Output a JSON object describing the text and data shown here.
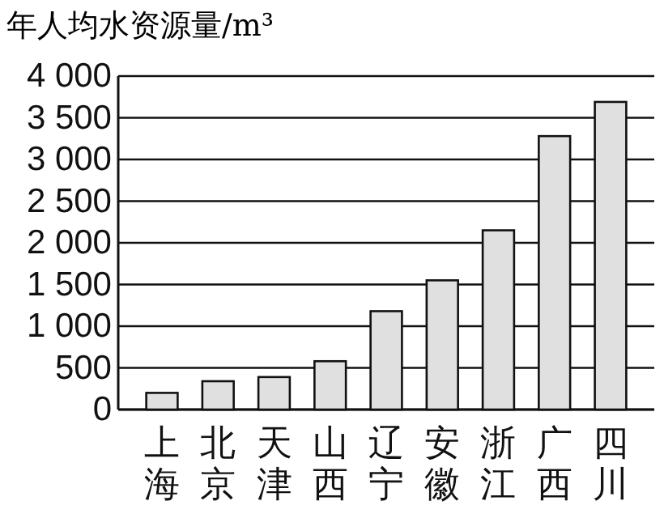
{
  "chart_data": {
    "type": "bar",
    "ylabel": "年人均水资源量/m³",
    "categories": [
      "上海",
      "北京",
      "天津",
      "山西",
      "辽宁",
      "安徽",
      "浙江",
      "广西",
      "四川"
    ],
    "values": [
      200,
      340,
      390,
      580,
      1180,
      1550,
      2150,
      3280,
      3690
    ],
    "color": "#e0e0e0",
    "ylim": [
      0,
      4000
    ],
    "yticks": [
      {
        "value": 0,
        "label": "0"
      },
      {
        "value": 500,
        "label": "500"
      },
      {
        "value": 1000,
        "label": "1 000"
      },
      {
        "value": 1500,
        "label": "1 500"
      },
      {
        "value": 2000,
        "label": "2 000"
      },
      {
        "value": 2500,
        "label": "2 500"
      },
      {
        "value": 3000,
        "label": "3 000"
      },
      {
        "value": 3500,
        "label": "3 500"
      },
      {
        "value": 4000,
        "label": "4 000"
      }
    ],
    "grid": "y"
  }
}
